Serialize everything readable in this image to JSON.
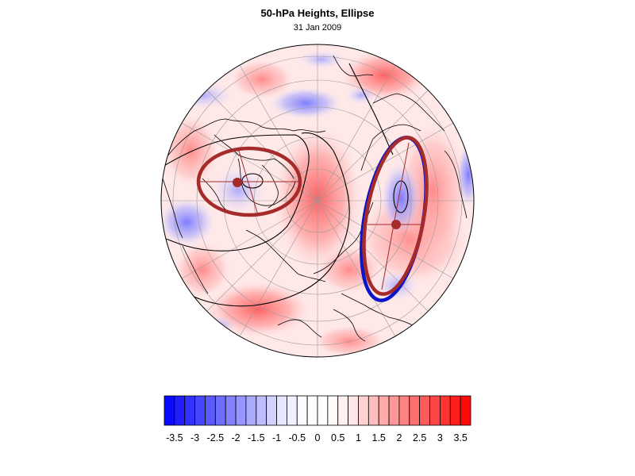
{
  "title": "50-hPa Heights, Ellipse",
  "subtitle": "31 Jan 2009",
  "colors": {
    "background": "#ffffff",
    "ellipse_red": "#a52a2a",
    "ellipse_blue": "#0a14c8",
    "coast": "#000000",
    "grid": "#9a9a9a"
  },
  "colorbar": {
    "ticks": [
      "-3.5",
      "-3",
      "-2.5",
      "-2",
      "-1.5",
      "-1",
      "-0.5",
      "0",
      "0.5",
      "1",
      "1.5",
      "2",
      "2.5",
      "3",
      "3.5"
    ],
    "levels": [
      -3.75,
      -3.5,
      -3.25,
      -3,
      -2.75,
      -2.5,
      -2.25,
      -2,
      -1.75,
      -1.5,
      -1.25,
      -1,
      -0.75,
      -0.5,
      -0.25,
      0,
      0.25,
      0.5,
      0.75,
      1,
      1.25,
      1.5,
      1.75,
      2,
      2.25,
      2.5,
      2.75,
      3,
      3.25,
      3.5,
      3.75
    ],
    "colors": [
      "#0a0aff",
      "#1e1eff",
      "#3232ff",
      "#4646ff",
      "#5a5aff",
      "#6e6eff",
      "#8282ff",
      "#9696ff",
      "#aaaaff",
      "#bebeff",
      "#d2d2ff",
      "#e6e6ff",
      "#f0f0ff",
      "#fafaff",
      "#ffffff",
      "#ffffff",
      "#fffafa",
      "#fff0f0",
      "#ffe6e6",
      "#ffd2d2",
      "#ffbebe",
      "#ffaaaa",
      "#ff9696",
      "#ff8282",
      "#ff6e6e",
      "#ff5a5a",
      "#ff4646",
      "#ff3232",
      "#ff1e1e",
      "#ff0a0a"
    ]
  },
  "map": {
    "projection": "orthographic",
    "view": "northern hemisphere, polar",
    "field": "50-hPa height anomaly (standardized)",
    "features": [
      {
        "name": "west vortex ellipse",
        "color": "red"
      },
      {
        "name": "east vortex ellipse, red",
        "color": "red"
      },
      {
        "name": "east vortex ellipse, blue",
        "color": "blue"
      }
    ]
  }
}
